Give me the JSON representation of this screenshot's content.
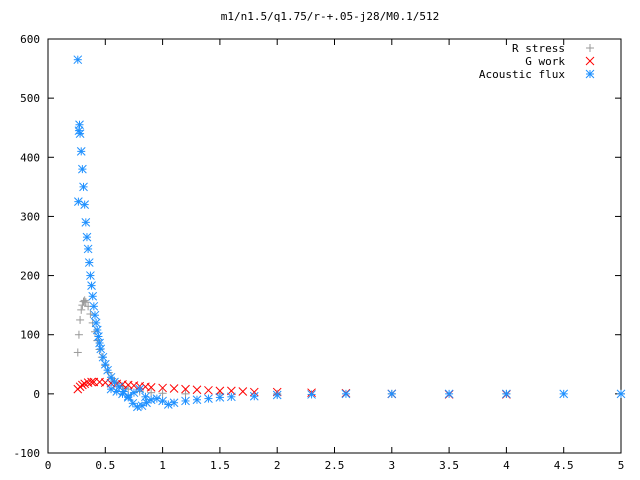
{
  "chart_data": {
    "type": "scatter",
    "title": "m1/n1.5/q1.75/r-+.05-j28/M0.1/512",
    "xlabel": "",
    "ylabel": "",
    "xlim": [
      0,
      5
    ],
    "ylim": [
      -100,
      600
    ],
    "x_ticks": [
      "0",
      "0.5",
      "1",
      "1.5",
      "2",
      "2.5",
      "3",
      "3.5",
      "4",
      "4.5",
      "5"
    ],
    "y_ticks": [
      "-100",
      "0",
      "100",
      "200",
      "300",
      "400",
      "500",
      "600"
    ],
    "grid": false,
    "legend_position": "top-right",
    "series": [
      {
        "name": "R stress",
        "marker": "plus",
        "color": "#999999",
        "points": [
          [
            0.26,
            70
          ],
          [
            0.27,
            100
          ],
          [
            0.28,
            125
          ],
          [
            0.29,
            142
          ],
          [
            0.3,
            150
          ],
          [
            0.31,
            156
          ],
          [
            0.32,
            158
          ],
          [
            0.33,
            155
          ],
          [
            0.35,
            148
          ],
          [
            0.37,
            135
          ],
          [
            0.39,
            120
          ],
          [
            0.41,
            105
          ],
          [
            0.43,
            90
          ],
          [
            0.45,
            75
          ],
          [
            0.47,
            62
          ],
          [
            0.5,
            48
          ],
          [
            0.53,
            36
          ],
          [
            0.56,
            26
          ],
          [
            0.6,
            18
          ],
          [
            0.65,
            12
          ],
          [
            0.7,
            8
          ],
          [
            0.8,
            4
          ],
          [
            0.9,
            2
          ],
          [
            1.0,
            1
          ],
          [
            1.2,
            0
          ],
          [
            1.5,
            0
          ],
          [
            2.0,
            0
          ],
          [
            3.0,
            0
          ],
          [
            4.0,
            0
          ],
          [
            5.0,
            0
          ]
        ]
      },
      {
        "name": "G work",
        "marker": "cross",
        "color": "#ff0000",
        "points": [
          [
            0.26,
            8
          ],
          [
            0.28,
            12
          ],
          [
            0.3,
            15
          ],
          [
            0.32,
            17
          ],
          [
            0.35,
            19
          ],
          [
            0.38,
            20
          ],
          [
            0.4,
            20
          ],
          [
            0.45,
            20
          ],
          [
            0.5,
            19
          ],
          [
            0.55,
            18
          ],
          [
            0.6,
            17
          ],
          [
            0.65,
            16
          ],
          [
            0.7,
            15
          ],
          [
            0.75,
            14
          ],
          [
            0.8,
            13
          ],
          [
            0.85,
            12
          ],
          [
            0.9,
            11
          ],
          [
            1.0,
            10
          ],
          [
            1.1,
            9
          ],
          [
            1.2,
            8
          ],
          [
            1.3,
            7
          ],
          [
            1.4,
            6
          ],
          [
            1.5,
            5
          ],
          [
            1.6,
            5
          ],
          [
            1.7,
            4
          ],
          [
            1.8,
            3
          ],
          [
            2.0,
            3
          ],
          [
            2.3,
            2
          ],
          [
            2.6,
            1
          ],
          [
            3.0,
            0
          ],
          [
            3.5,
            -1
          ],
          [
            4.0,
            -1
          ]
        ]
      },
      {
        "name": "Acoustic flux",
        "marker": "star",
        "color": "#1e90ff",
        "points": [
          [
            0.26,
            565
          ],
          [
            0.265,
            325
          ],
          [
            0.27,
            445
          ],
          [
            0.275,
            455
          ],
          [
            0.28,
            440
          ],
          [
            0.29,
            410
          ],
          [
            0.3,
            380
          ],
          [
            0.31,
            350
          ],
          [
            0.32,
            320
          ],
          [
            0.33,
            290
          ],
          [
            0.34,
            265
          ],
          [
            0.35,
            245
          ],
          [
            0.36,
            222
          ],
          [
            0.37,
            200
          ],
          [
            0.38,
            183
          ],
          [
            0.39,
            165
          ],
          [
            0.4,
            148
          ],
          [
            0.41,
            133
          ],
          [
            0.42,
            120
          ],
          [
            0.43,
            108
          ],
          [
            0.44,
            97
          ],
          [
            0.45,
            86
          ],
          [
            0.46,
            76
          ],
          [
            0.48,
            62
          ],
          [
            0.5,
            50
          ],
          [
            0.52,
            40
          ],
          [
            0.55,
            28
          ],
          [
            0.58,
            20
          ],
          [
            0.62,
            12
          ],
          [
            0.66,
            4
          ],
          [
            0.7,
            -6
          ],
          [
            0.74,
            -16
          ],
          [
            0.78,
            -22
          ],
          [
            0.82,
            -20
          ],
          [
            0.86,
            -15
          ],
          [
            0.9,
            -10
          ],
          [
            0.95,
            -8
          ],
          [
            1.0,
            -12
          ],
          [
            1.05,
            -18
          ],
          [
            1.1,
            -15
          ],
          [
            1.2,
            -12
          ],
          [
            1.3,
            -10
          ],
          [
            1.4,
            -8
          ],
          [
            1.5,
            -6
          ],
          [
            1.6,
            -5
          ],
          [
            1.8,
            -4
          ],
          [
            2.0,
            -2
          ],
          [
            2.3,
            -1
          ],
          [
            2.6,
            0
          ],
          [
            3.0,
            0
          ],
          [
            3.5,
            0
          ],
          [
            4.0,
            0
          ],
          [
            4.5,
            0
          ],
          [
            5.0,
            0
          ],
          [
            0.55,
            8
          ],
          [
            0.6,
            4
          ],
          [
            0.65,
            0
          ],
          [
            0.7,
            -4
          ],
          [
            0.75,
            2
          ],
          [
            0.8,
            8
          ],
          [
            0.85,
            -5
          ]
        ]
      }
    ]
  }
}
